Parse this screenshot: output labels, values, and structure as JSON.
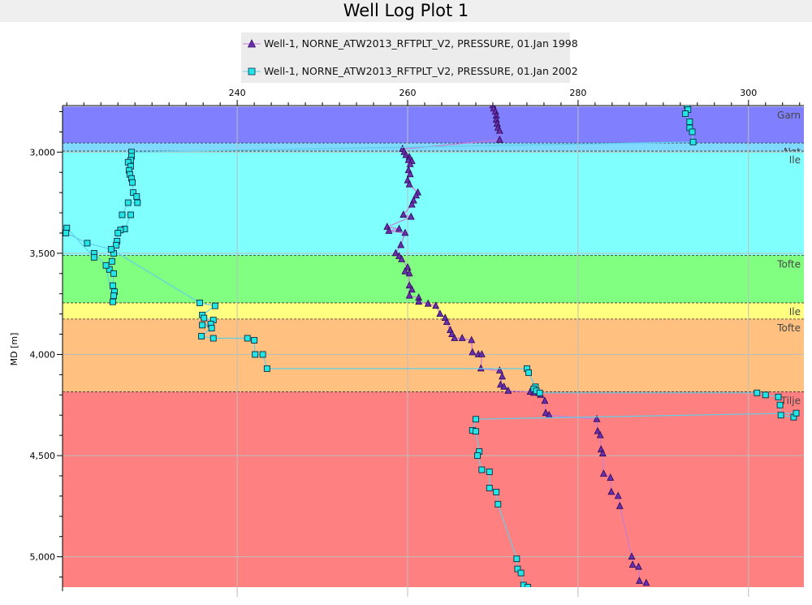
{
  "window": {
    "title": "Well Log Plot 1"
  },
  "chart_data": {
    "type": "scatter",
    "title": "Well Log Plot 1",
    "ylabel": "MD [m]",
    "xlabel": "",
    "xlim": [
      219.5,
      306.5
    ],
    "ylim": [
      5150,
      2770
    ],
    "x_ticks": [
      240,
      260,
      280,
      300
    ],
    "y_ticks": [
      3000,
      3500,
      4000,
      4500,
      5000
    ],
    "x_tick_labels": [
      "240",
      "260",
      "280",
      "300"
    ],
    "y_tick_labels": [
      "3,000",
      "3,500",
      "4,000",
      "4,500",
      "5,000"
    ],
    "grid": true,
    "legend_position": "top",
    "zones": [
      {
        "name": "Garn",
        "top": 2775,
        "bottom": 2955,
        "color": "#8080ff"
      },
      {
        "name": "Not",
        "top": 2955,
        "bottom": 2995,
        "color": "#80d9ff"
      },
      {
        "name": "Ile",
        "top": 2995,
        "bottom": 3510,
        "color": "#80ffff"
      },
      {
        "name": "Tofte",
        "top": 3510,
        "bottom": 3745,
        "color": "#80ff80"
      },
      {
        "name": "Ile",
        "top": 3745,
        "bottom": 3825,
        "color": "#ffff80"
      },
      {
        "name": "Tofte",
        "top": 3825,
        "bottom": 4185,
        "color": "#ffc080"
      },
      {
        "name": "Tilje",
        "top": 4185,
        "bottom": 5150,
        "color": "#ff8080"
      }
    ],
    "series": [
      {
        "name": "Well-1, NORNE_ATW2013_RFTPLT_V2, PRESSURE, 01.Jan 1998",
        "color": "#6a2fb0",
        "line_color": "#c879d2",
        "marker": "triangle",
        "points": [
          [
            270.0,
            2770
          ],
          [
            270.1,
            2785
          ],
          [
            270.3,
            2800
          ],
          [
            270.4,
            2820
          ],
          [
            270.4,
            2840
          ],
          [
            270.5,
            2860
          ],
          [
            270.6,
            2880
          ],
          [
            270.8,
            2895
          ],
          [
            270.8,
            2940
          ],
          [
            259.4,
            2985
          ],
          [
            259.6,
            3000
          ],
          [
            259.8,
            3015
          ],
          [
            260.2,
            3025
          ],
          [
            260.1,
            3040
          ],
          [
            260.5,
            3045
          ],
          [
            260.3,
            3060
          ],
          [
            260.1,
            3090
          ],
          [
            260.3,
            3110
          ],
          [
            260.0,
            3140
          ],
          [
            260.2,
            3160
          ],
          [
            261.2,
            3200
          ],
          [
            261.0,
            3215
          ],
          [
            260.7,
            3240
          ],
          [
            260.5,
            3260
          ],
          [
            259.5,
            3310
          ],
          [
            260.4,
            3320
          ],
          [
            257.6,
            3370
          ],
          [
            259.0,
            3380
          ],
          [
            257.8,
            3390
          ],
          [
            259.7,
            3400
          ],
          [
            259.2,
            3460
          ],
          [
            258.6,
            3500
          ],
          [
            259.0,
            3515
          ],
          [
            259.3,
            3530
          ],
          [
            260.0,
            3570
          ],
          [
            259.7,
            3590
          ],
          [
            260.2,
            3600
          ],
          [
            260.2,
            3660
          ],
          [
            260.5,
            3680
          ],
          [
            260.2,
            3710
          ],
          [
            261.3,
            3720
          ],
          [
            261.3,
            3740
          ],
          [
            262.4,
            3750
          ],
          [
            263.3,
            3760
          ],
          [
            263.8,
            3800
          ],
          [
            264.4,
            3820
          ],
          [
            264.6,
            3840
          ],
          [
            265.0,
            3880
          ],
          [
            265.2,
            3900
          ],
          [
            265.5,
            3920
          ],
          [
            266.4,
            3920
          ],
          [
            267.5,
            3930
          ],
          [
            267.6,
            3990
          ],
          [
            268.3,
            4000
          ],
          [
            268.7,
            4000
          ],
          [
            268.6,
            4070
          ],
          [
            270.8,
            4080
          ],
          [
            271.1,
            4110
          ],
          [
            270.9,
            4150
          ],
          [
            271.3,
            4160
          ],
          [
            271.8,
            4180
          ],
          [
            274.4,
            4185
          ],
          [
            274.8,
            4190
          ],
          [
            275.6,
            4200
          ],
          [
            276.1,
            4230
          ],
          [
            276.2,
            4290
          ],
          [
            276.6,
            4300
          ],
          [
            282.2,
            4320
          ],
          [
            282.3,
            4380
          ],
          [
            282.6,
            4400
          ],
          [
            282.7,
            4470
          ],
          [
            282.9,
            4490
          ],
          [
            283.0,
            4590
          ],
          [
            283.8,
            4610
          ],
          [
            283.9,
            4680
          ],
          [
            284.7,
            4700
          ],
          [
            284.9,
            4750
          ],
          [
            286.3,
            5000
          ],
          [
            286.4,
            5040
          ],
          [
            287.1,
            5050
          ],
          [
            287.2,
            5120
          ],
          [
            288.0,
            5130
          ]
        ]
      },
      {
        "name": "Well-1, NORNE_ATW2013_RFTPLT_V2, PRESSURE, 01.Jan 2002",
        "color": "#22e6e6",
        "line_color": "#60cfe8",
        "marker": "square",
        "points": [
          [
            292.8,
            2770
          ],
          [
            292.9,
            2790
          ],
          [
            292.6,
            2810
          ],
          [
            293.1,
            2850
          ],
          [
            293.1,
            2880
          ],
          [
            293.4,
            2900
          ],
          [
            293.5,
            2950
          ],
          [
            227.6,
            3000
          ],
          [
            227.6,
            3020
          ],
          [
            227.5,
            3040
          ],
          [
            227.2,
            3050
          ],
          [
            227.5,
            3070
          ],
          [
            227.3,
            3090
          ],
          [
            227.4,
            3110
          ],
          [
            227.6,
            3130
          ],
          [
            227.7,
            3150
          ],
          [
            227.8,
            3200
          ],
          [
            228.2,
            3220
          ],
          [
            228.3,
            3250
          ],
          [
            227.2,
            3250
          ],
          [
            226.5,
            3310
          ],
          [
            227.5,
            3310
          ],
          [
            226.8,
            3380
          ],
          [
            226.3,
            3385
          ],
          [
            226.0,
            3400
          ],
          [
            225.9,
            3440
          ],
          [
            225.8,
            3460
          ],
          [
            225.5,
            3500
          ],
          [
            225.3,
            3540
          ],
          [
            225.0,
            3580
          ],
          [
            225.5,
            3600
          ],
          [
            225.4,
            3660
          ],
          [
            225.6,
            3690
          ],
          [
            225.5,
            3710
          ],
          [
            225.4,
            3740
          ],
          [
            224.6,
            3560
          ],
          [
            223.2,
            3500
          ],
          [
            223.2,
            3520
          ],
          [
            220.0,
            3375
          ],
          [
            219.9,
            3400
          ],
          [
            222.4,
            3450
          ],
          [
            225.2,
            3480
          ],
          [
            235.6,
            3745
          ],
          [
            237.4,
            3760
          ],
          [
            235.9,
            3805
          ],
          [
            236.1,
            3820
          ],
          [
            237.2,
            3830
          ],
          [
            236.9,
            3850
          ],
          [
            235.9,
            3855
          ],
          [
            237.0,
            3870
          ],
          [
            235.8,
            3910
          ],
          [
            237.2,
            3920
          ],
          [
            241.2,
            3920
          ],
          [
            242.0,
            3930
          ],
          [
            242.1,
            4000
          ],
          [
            243.0,
            4000
          ],
          [
            243.5,
            4070
          ],
          [
            274.0,
            4070
          ],
          [
            274.2,
            4090
          ],
          [
            275.0,
            4160
          ],
          [
            274.8,
            4170
          ],
          [
            275.1,
            4180
          ],
          [
            275.5,
            4190
          ],
          [
            301.0,
            4190
          ],
          [
            302.0,
            4200
          ],
          [
            303.5,
            4210
          ],
          [
            303.7,
            4250
          ],
          [
            303.8,
            4300
          ],
          [
            305.3,
            4310
          ],
          [
            305.6,
            4290
          ],
          [
            268.0,
            4320
          ],
          [
            267.6,
            4375
          ],
          [
            268.0,
            4380
          ],
          [
            268.4,
            4480
          ],
          [
            268.2,
            4500
          ],
          [
            268.7,
            4570
          ],
          [
            269.6,
            4580
          ],
          [
            269.6,
            4660
          ],
          [
            270.4,
            4680
          ],
          [
            270.6,
            4740
          ],
          [
            272.8,
            5010
          ],
          [
            272.9,
            5060
          ],
          [
            273.3,
            5080
          ],
          [
            273.6,
            5140
          ],
          [
            274.1,
            5150
          ],
          [
            274.3,
            5170
          ]
        ]
      }
    ]
  }
}
